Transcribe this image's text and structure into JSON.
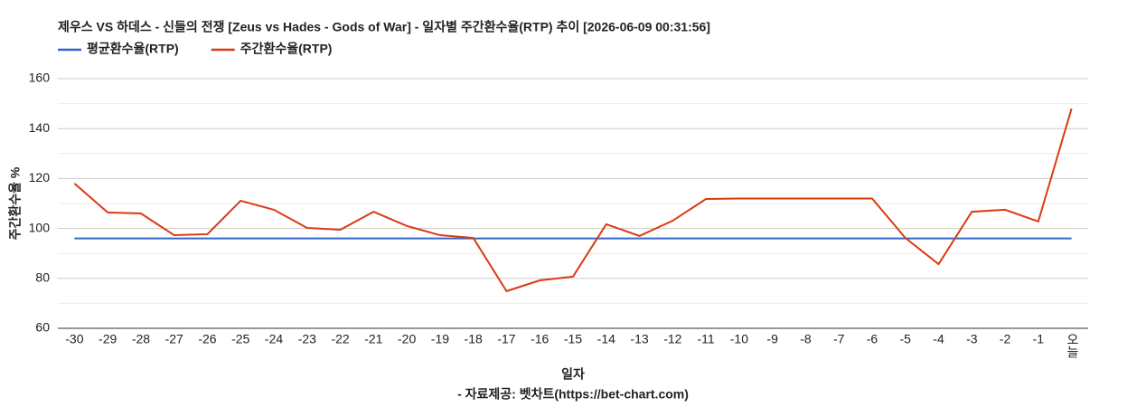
{
  "chart_data": {
    "type": "line",
    "title": "제우스 VS 하데스 - 신들의 전쟁 [Zeus vs Hades - Gods of War] - 일자별 주간환수율(RTP) 추이 [2026-06-09 00:31:56]",
    "x_label": "일자",
    "y_label": "주간환수율 %",
    "source": "- 자료제공: 벳차트(https://bet-chart.com)",
    "categories": [
      "-30",
      "-29",
      "-28",
      "-27",
      "-26",
      "-25",
      "-24",
      "-23",
      "-22",
      "-21",
      "-20",
      "-19",
      "-18",
      "-17",
      "-16",
      "-15",
      "-14",
      "-13",
      "-12",
      "-11",
      "-10",
      "-9",
      "-8",
      "-7",
      "-6",
      "-5",
      "-4",
      "-3",
      "-2",
      "-1",
      "오늘"
    ],
    "series": [
      {
        "name": "평균환수율(RTP)",
        "color": "#3366cc",
        "values": [
          96,
          96,
          96,
          96,
          96,
          96,
          96,
          96,
          96,
          96,
          96,
          96,
          96,
          96,
          96,
          96,
          96,
          96,
          96,
          96,
          96,
          96,
          96,
          96,
          96,
          96,
          96,
          96,
          96,
          96,
          96
        ]
      },
      {
        "name": "주간환수율(RTP)",
        "color": "#dc3912",
        "values": [
          118,
          106.4,
          106,
          97.3,
          97.7,
          111.1,
          107.5,
          100.2,
          99.5,
          106.7,
          101,
          97.3,
          96.2,
          74.9,
          79.2,
          80.7,
          101.7,
          97,
          103.1,
          111.8,
          112,
          112,
          112,
          112,
          112,
          96.2,
          85.7,
          106.7,
          107.5,
          102.8,
          148
        ]
      }
    ],
    "ylim": [
      60,
      160
    ],
    "yticks": [
      60,
      80,
      100,
      120,
      140,
      160
    ],
    "minor_yticks": [
      70,
      90,
      110,
      130,
      150
    ],
    "grid": true,
    "legend": "top"
  }
}
